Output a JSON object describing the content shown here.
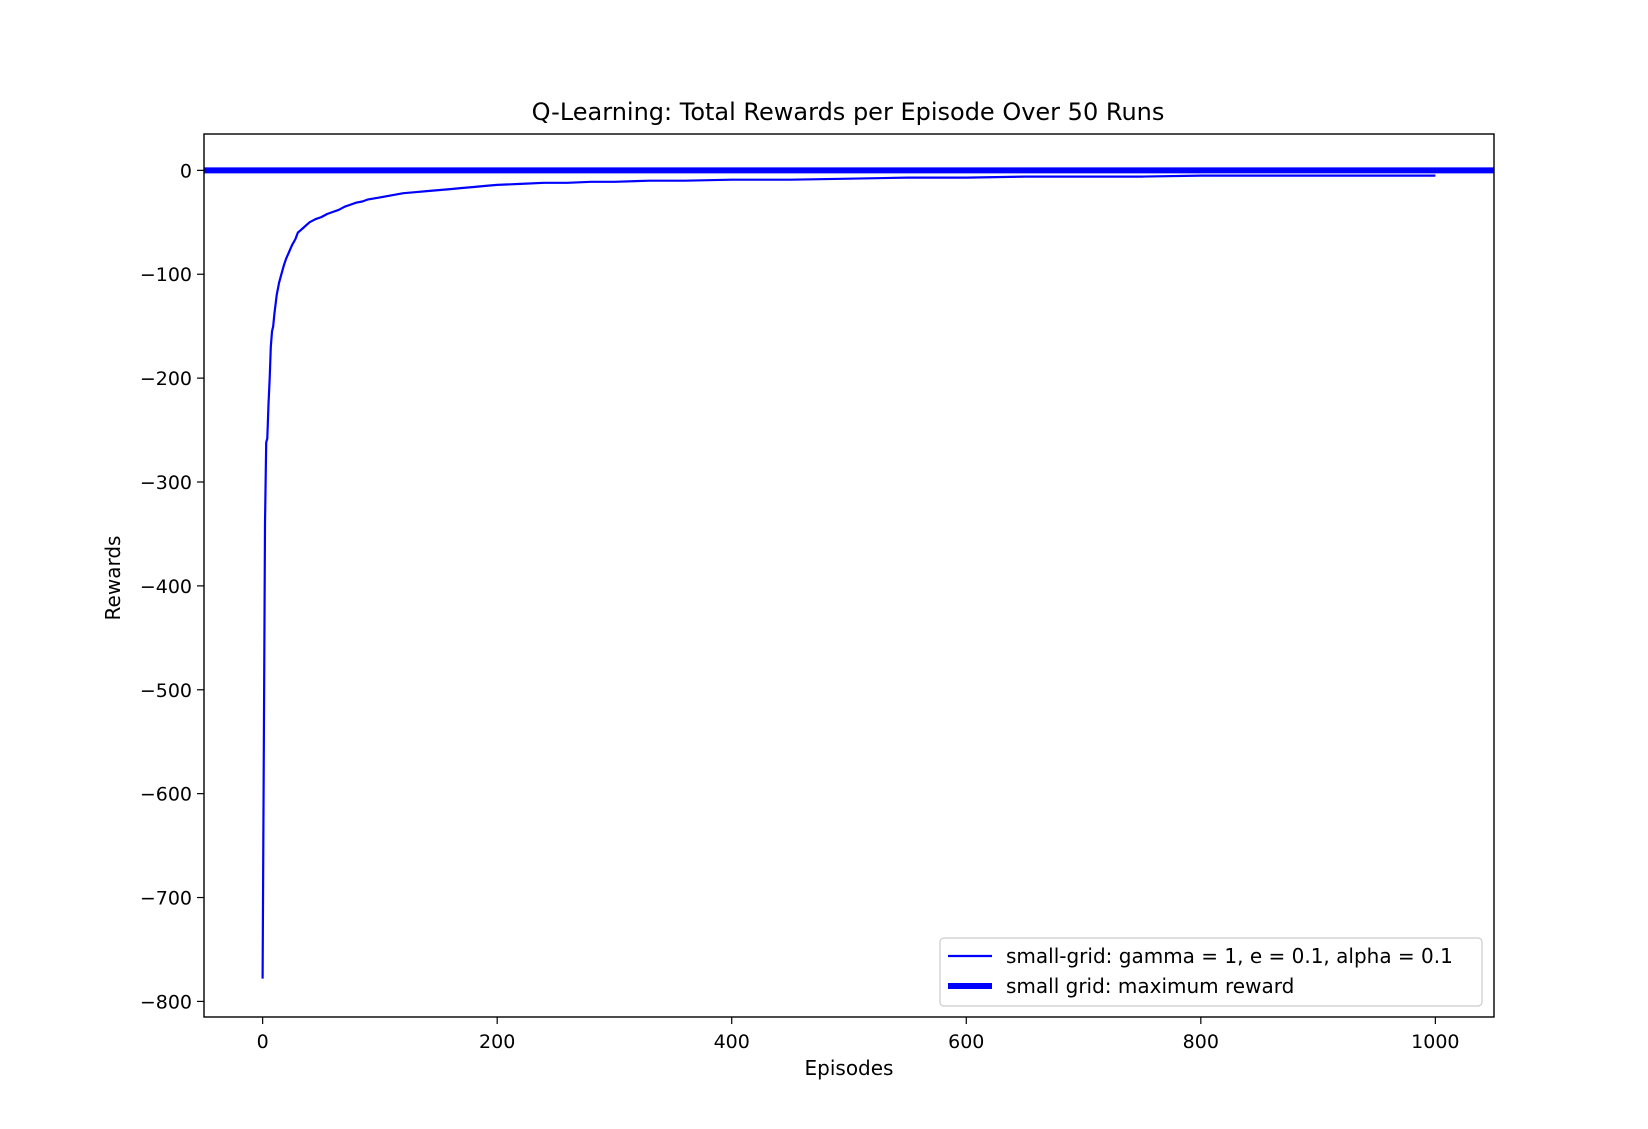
{
  "chart_data": {
    "type": "line",
    "title": "Q-Learning: Total Rewards per Episode Over 50 Runs",
    "xlabel": "Episodes",
    "ylabel": "Rewards",
    "xlim": [
      -50,
      1050
    ],
    "ylim": [
      -815,
      35
    ],
    "xticks": [
      0,
      200,
      400,
      600,
      800,
      1000
    ],
    "xtick_labels": [
      "0",
      "200",
      "400",
      "600",
      "800",
      "1000"
    ],
    "yticks": [
      0,
      -100,
      -200,
      -300,
      -400,
      -500,
      -600,
      -700,
      -800
    ],
    "ytick_labels": [
      "0",
      "−100",
      "−200",
      "−300",
      "−400",
      "−500",
      "−600",
      "−700",
      "−800"
    ],
    "grid": false,
    "legend_position": "lower-right",
    "series": [
      {
        "name": "small-grid: gamma = 1, e = 0.1, alpha = 0.1",
        "color": "#0000ff",
        "style": "thin",
        "x": [
          0,
          1,
          2,
          3,
          4,
          5,
          6,
          7,
          8,
          9,
          10,
          12,
          14,
          16,
          18,
          20,
          22,
          25,
          28,
          30,
          35,
          40,
          45,
          50,
          55,
          60,
          65,
          70,
          75,
          80,
          85,
          90,
          100,
          110,
          120,
          130,
          140,
          150,
          160,
          170,
          180,
          190,
          200,
          220,
          240,
          260,
          280,
          300,
          330,
          360,
          400,
          450,
          500,
          550,
          600,
          650,
          700,
          750,
          800,
          850,
          900,
          950,
          1000
        ],
        "y": [
          -778,
          -560,
          -340,
          -262,
          -258,
          -225,
          -200,
          -170,
          -155,
          -150,
          -138,
          -120,
          -108,
          -100,
          -92,
          -85,
          -80,
          -72,
          -66,
          -60,
          -55,
          -50,
          -47,
          -45,
          -42,
          -40,
          -38,
          -35,
          -33,
          -31,
          -30,
          -28,
          -26,
          -24,
          -22,
          -21,
          -20,
          -19,
          -18,
          -17,
          -16,
          -15,
          -14,
          -13,
          -12,
          -12,
          -11,
          -11,
          -10,
          -10,
          -9,
          -9,
          -8,
          -7,
          -7,
          -6,
          -6,
          -6,
          -5,
          -5,
          -5,
          -5,
          -5
        ]
      },
      {
        "name": "small grid: maximum reward",
        "color": "#0000ff",
        "style": "thick",
        "x": [
          -50,
          1050
        ],
        "y": [
          0,
          0
        ]
      }
    ]
  }
}
